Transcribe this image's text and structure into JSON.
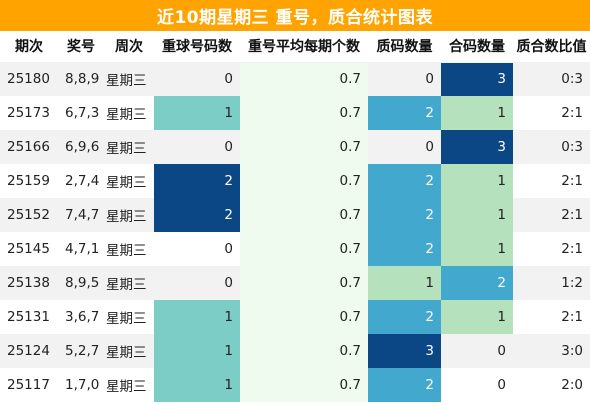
{
  "title": "近10期星期三 重号，质合统计图表",
  "colors": {
    "title_bg": "#ffa300",
    "heat_0": "#f0fbf0",
    "heat_1": "#b5e2bd",
    "heat_2": "#7ccdc5",
    "heat_3": "#43a8cd",
    "heat_4": "#0b4685"
  },
  "columns": [
    "期次",
    "奖号",
    "周次",
    "重球号码数",
    "重号平均每期个数",
    "质码数量",
    "合码数量",
    "质合数比值"
  ],
  "rows": [
    {
      "issue": "25180",
      "numbers": "8,8,9",
      "weekday": "星期三",
      "repeat": "0",
      "avg": "0.7",
      "prime": "0",
      "composite": "3",
      "ratio": "0:3",
      "repeat_heat": "none",
      "prime_heat": "none",
      "composite_heat": "heat_4"
    },
    {
      "issue": "25173",
      "numbers": "6,7,3",
      "weekday": "星期三",
      "repeat": "1",
      "avg": "0.7",
      "prime": "2",
      "composite": "1",
      "ratio": "2:1",
      "repeat_heat": "heat_2",
      "prime_heat": "heat_3",
      "composite_heat": "heat_1"
    },
    {
      "issue": "25166",
      "numbers": "6,9,6",
      "weekday": "星期三",
      "repeat": "0",
      "avg": "0.7",
      "prime": "0",
      "composite": "3",
      "ratio": "0:3",
      "repeat_heat": "none",
      "prime_heat": "none",
      "composite_heat": "heat_4"
    },
    {
      "issue": "25159",
      "numbers": "2,7,4",
      "weekday": "星期三",
      "repeat": "2",
      "avg": "0.7",
      "prime": "2",
      "composite": "1",
      "ratio": "2:1",
      "repeat_heat": "heat_4",
      "prime_heat": "heat_3",
      "composite_heat": "heat_1"
    },
    {
      "issue": "25152",
      "numbers": "7,4,7",
      "weekday": "星期三",
      "repeat": "2",
      "avg": "0.7",
      "prime": "2",
      "composite": "1",
      "ratio": "2:1",
      "repeat_heat": "heat_4",
      "prime_heat": "heat_3",
      "composite_heat": "heat_1"
    },
    {
      "issue": "25145",
      "numbers": "4,7,1",
      "weekday": "星期三",
      "repeat": "0",
      "avg": "0.7",
      "prime": "2",
      "composite": "1",
      "ratio": "2:1",
      "repeat_heat": "none",
      "prime_heat": "heat_3",
      "composite_heat": "heat_1"
    },
    {
      "issue": "25138",
      "numbers": "8,9,5",
      "weekday": "星期三",
      "repeat": "0",
      "avg": "0.7",
      "prime": "1",
      "composite": "2",
      "ratio": "1:2",
      "repeat_heat": "none",
      "prime_heat": "heat_1",
      "composite_heat": "heat_3"
    },
    {
      "issue": "25131",
      "numbers": "3,6,7",
      "weekday": "星期三",
      "repeat": "1",
      "avg": "0.7",
      "prime": "2",
      "composite": "1",
      "ratio": "2:1",
      "repeat_heat": "heat_2",
      "prime_heat": "heat_3",
      "composite_heat": "heat_1"
    },
    {
      "issue": "25124",
      "numbers": "5,2,7",
      "weekday": "星期三",
      "repeat": "1",
      "avg": "0.7",
      "prime": "3",
      "composite": "0",
      "ratio": "3:0",
      "repeat_heat": "heat_2",
      "prime_heat": "heat_4",
      "composite_heat": "none"
    },
    {
      "issue": "25117",
      "numbers": "1,7,0",
      "weekday": "星期三",
      "repeat": "1",
      "avg": "0.7",
      "prime": "2",
      "composite": "0",
      "ratio": "2:0",
      "repeat_heat": "heat_2",
      "prime_heat": "heat_3",
      "composite_heat": "none"
    }
  ]
}
